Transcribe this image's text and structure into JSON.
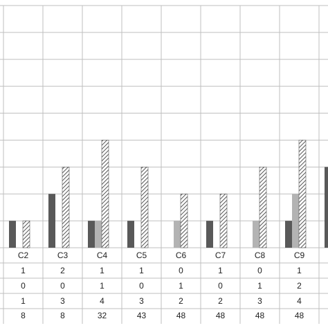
{
  "chart_data": {
    "type": "bar",
    "categories": [
      "C2",
      "C3",
      "C4",
      "C5",
      "C6",
      "C7",
      "C8",
      "C9",
      null
    ],
    "series": [
      {
        "color": "#595959",
        "values": [
          1,
          2,
          1,
          1,
          0,
          1,
          0,
          1,
          3
        ]
      },
      {
        "color": "#b3b3b3",
        "values": [
          0,
          0,
          1,
          0,
          1,
          0,
          1,
          2,
          null
        ]
      },
      {
        "color": "#555555",
        "hatch": true,
        "values": [
          1,
          3,
          4,
          3,
          2,
          2,
          3,
          4,
          null
        ]
      }
    ],
    "footer_row": [
      8,
      8,
      32,
      43,
      48,
      48,
      48,
      48,
      null
    ],
    "ylim": [
      0,
      9
    ],
    "yticks": [
      0,
      1,
      2,
      3,
      4,
      5,
      6,
      7,
      8,
      9
    ],
    "grid": true
  }
}
